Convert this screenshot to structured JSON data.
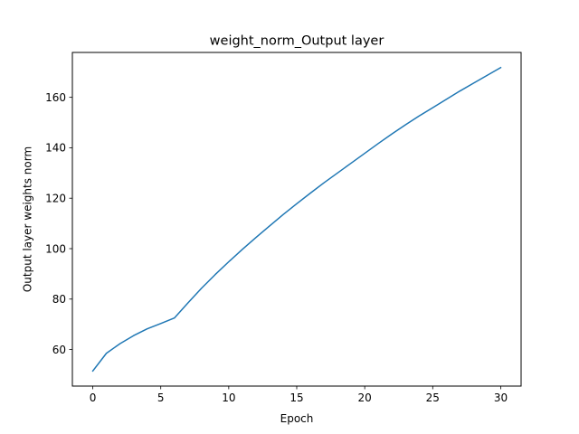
{
  "chart_data": {
    "type": "line",
    "title": "weight_norm_Output layer",
    "xlabel": "Epoch",
    "ylabel": "Output layer weights norm",
    "xlim": [
      -1.5,
      31.5
    ],
    "ylim": [
      45.5,
      177.8
    ],
    "x_ticks": [
      0,
      5,
      10,
      15,
      20,
      25,
      30
    ],
    "y_ticks": [
      60,
      80,
      100,
      120,
      140,
      160
    ],
    "grid": false,
    "legend": "none",
    "series": [
      {
        "color": "#1f77b4",
        "x": [
          0,
          1,
          2,
          3,
          4,
          5,
          6,
          7,
          8,
          9,
          10,
          11,
          12,
          13,
          14,
          15,
          16,
          17,
          18,
          19,
          20,
          21,
          22,
          23,
          24,
          25,
          26,
          27,
          28,
          29,
          30
        ],
        "y": [
          51.5,
          58.5,
          62.3,
          65.5,
          68.2,
          70.3,
          72.5,
          78.5,
          84.3,
          89.7,
          94.8,
          99.7,
          104.4,
          109.0,
          113.5,
          117.8,
          122.0,
          126.1,
          130.0,
          133.9,
          137.8,
          141.7,
          145.5,
          149.1,
          152.6,
          155.9,
          159.2,
          162.5,
          165.6,
          168.7,
          171.8
        ]
      }
    ]
  }
}
